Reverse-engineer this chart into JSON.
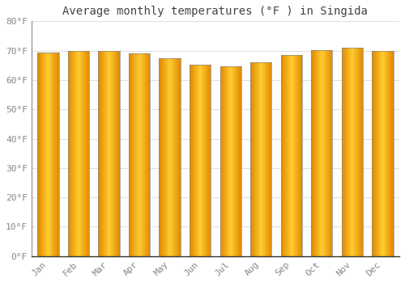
{
  "title": "Average monthly temperatures (°F ) in Singida",
  "months": [
    "Jan",
    "Feb",
    "Mar",
    "Apr",
    "May",
    "Jun",
    "Jul",
    "Aug",
    "Sep",
    "Oct",
    "Nov",
    "Dec"
  ],
  "values": [
    69.3,
    70.0,
    70.0,
    69.1,
    67.3,
    65.1,
    64.6,
    66.1,
    68.5,
    70.3,
    71.1,
    70.0
  ],
  "ylim": [
    0,
    80
  ],
  "yticks": [
    0,
    10,
    20,
    30,
    40,
    50,
    60,
    70,
    80
  ],
  "ytick_labels": [
    "0°F",
    "10°F",
    "20°F",
    "30°F",
    "40°F",
    "50°F",
    "60°F",
    "70°F",
    "80°F"
  ],
  "background_color": "#ffffff",
  "plot_bg_color": "#ffffff",
  "grid_color": "#e0e0e0",
  "title_fontsize": 10,
  "tick_fontsize": 8,
  "bar_color_center": "#FFC020",
  "bar_color_edge": "#E08000",
  "bar_width": 0.7
}
